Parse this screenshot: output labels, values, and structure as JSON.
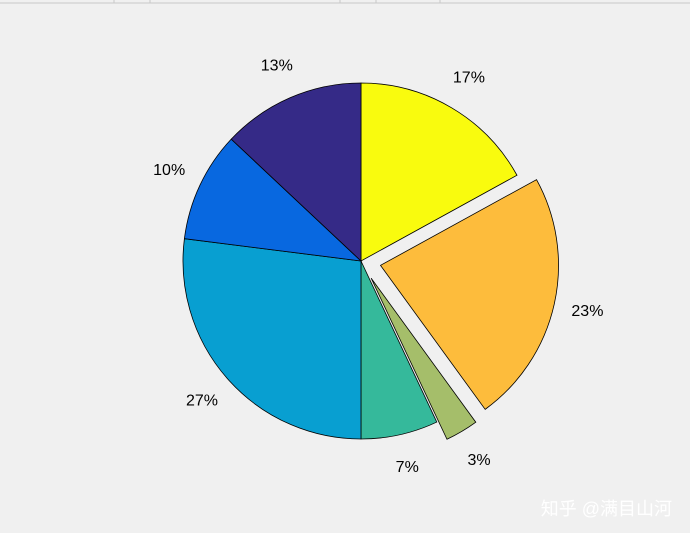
{
  "chart_data": {
    "type": "pie",
    "values": [
      17,
      23,
      3,
      7,
      27,
      10,
      13
    ],
    "value_labels": [
      "17%",
      "23%",
      "3%",
      "7%",
      "27%",
      "10%",
      "13%"
    ],
    "colors": [
      "#f9fb0e",
      "#fdbc3c",
      "#a5be6a",
      "#35b99b",
      "#089fd1",
      "#0868e0",
      "#352a87"
    ],
    "explode": [
      false,
      true,
      true,
      false,
      false,
      false,
      false
    ]
  },
  "watermark": "知乎 @满目山河"
}
